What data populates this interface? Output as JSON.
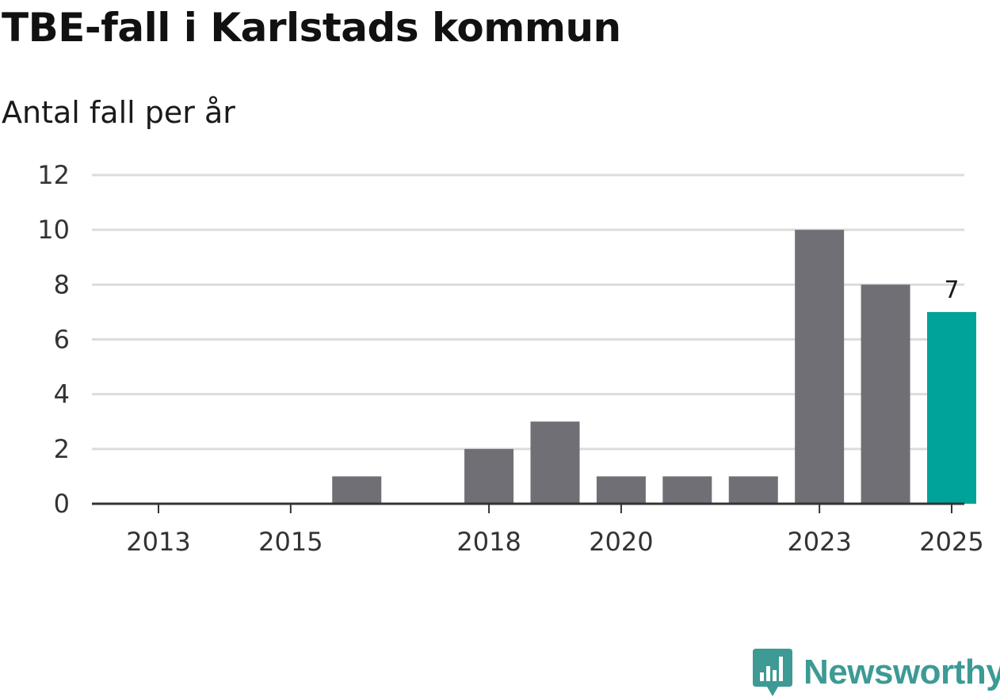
{
  "chart_data": {
    "type": "bar",
    "title": "TBE-fall i Karlstads kommun",
    "subtitle": "Antal fall per år",
    "xlabel": "",
    "ylabel": "",
    "categories": [
      "2013",
      "2014",
      "2015",
      "2016",
      "2017",
      "2018",
      "2019",
      "2020",
      "2021",
      "2022",
      "2023",
      "2024",
      "2025"
    ],
    "values": [
      0,
      0,
      0,
      1,
      0,
      2,
      3,
      1,
      1,
      1,
      10,
      8,
      7
    ],
    "x_tick_labels": [
      "2013",
      "2015",
      "2018",
      "2020",
      "2023",
      "2025"
    ],
    "y_ticks": [
      "0",
      "2",
      "4",
      "6",
      "8",
      "10",
      "12"
    ],
    "ylim": [
      0,
      12
    ],
    "grid": true,
    "highlight_category": "2025",
    "highlight_label": "7",
    "colors": {
      "bar": "#706f75",
      "highlight": "#00a398",
      "grid": "#dcdcdc",
      "axis": "#333333"
    }
  },
  "brand": {
    "name": "Newsworthy",
    "logo_icon": "newsworthy-chart-bubble-icon",
    "color": "#3d9a95"
  }
}
